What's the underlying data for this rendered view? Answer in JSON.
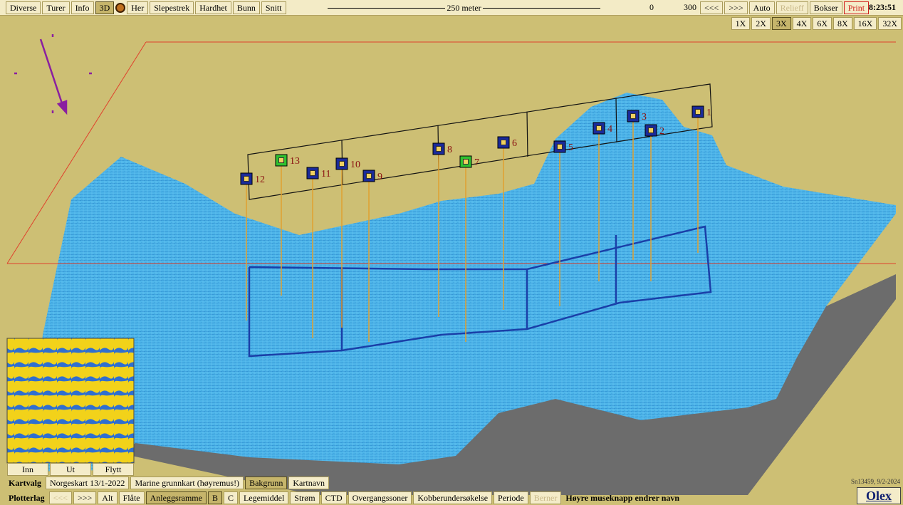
{
  "toolbar": {
    "left": [
      "Diverse",
      "Turer",
      "Info",
      "3D"
    ],
    "right": [
      "Her",
      "Slepestrek",
      "Hardhet",
      "Bunn",
      "Snitt"
    ],
    "scale": "250 meter",
    "depth_min": 0,
    "depth_max": 300,
    "buttons": [
      "<<<",
      ">>>",
      "Auto",
      "Relieff",
      "Bokser",
      "Print"
    ],
    "time": "8:23:51"
  },
  "zoom": [
    "1X",
    "2X",
    "3X",
    "4X",
    "6X",
    "8X",
    "16X",
    "32X"
  ],
  "markers": [
    1,
    2,
    3,
    4,
    5,
    6,
    7,
    8,
    9,
    10,
    11,
    12,
    13
  ],
  "minimap": {
    "buttons": [
      "Inn",
      "Ut",
      "Flytt"
    ]
  },
  "kartvalg": {
    "label": "Kartvalg",
    "buttons": [
      "Norgeskart 13/1-2022",
      "Marine grunnkart (høyremus!)",
      "Bakgrunn",
      "Kartnavn"
    ]
  },
  "plotterlag": {
    "label": "Plotterlag",
    "buttons": [
      "<<<",
      ">>>",
      "Alt",
      "Flåte",
      "Anleggsramme",
      "B",
      "C",
      "Legemiddel",
      "Strøm",
      "CTD",
      "Overgangssoner",
      "Kobberundersøkelse",
      "Periode",
      "Berner"
    ],
    "hint": "Høyre museknapp endrer navn"
  },
  "footer": {
    "serial": "Sn13459, 9/2-2024",
    "logo": "Olex"
  }
}
